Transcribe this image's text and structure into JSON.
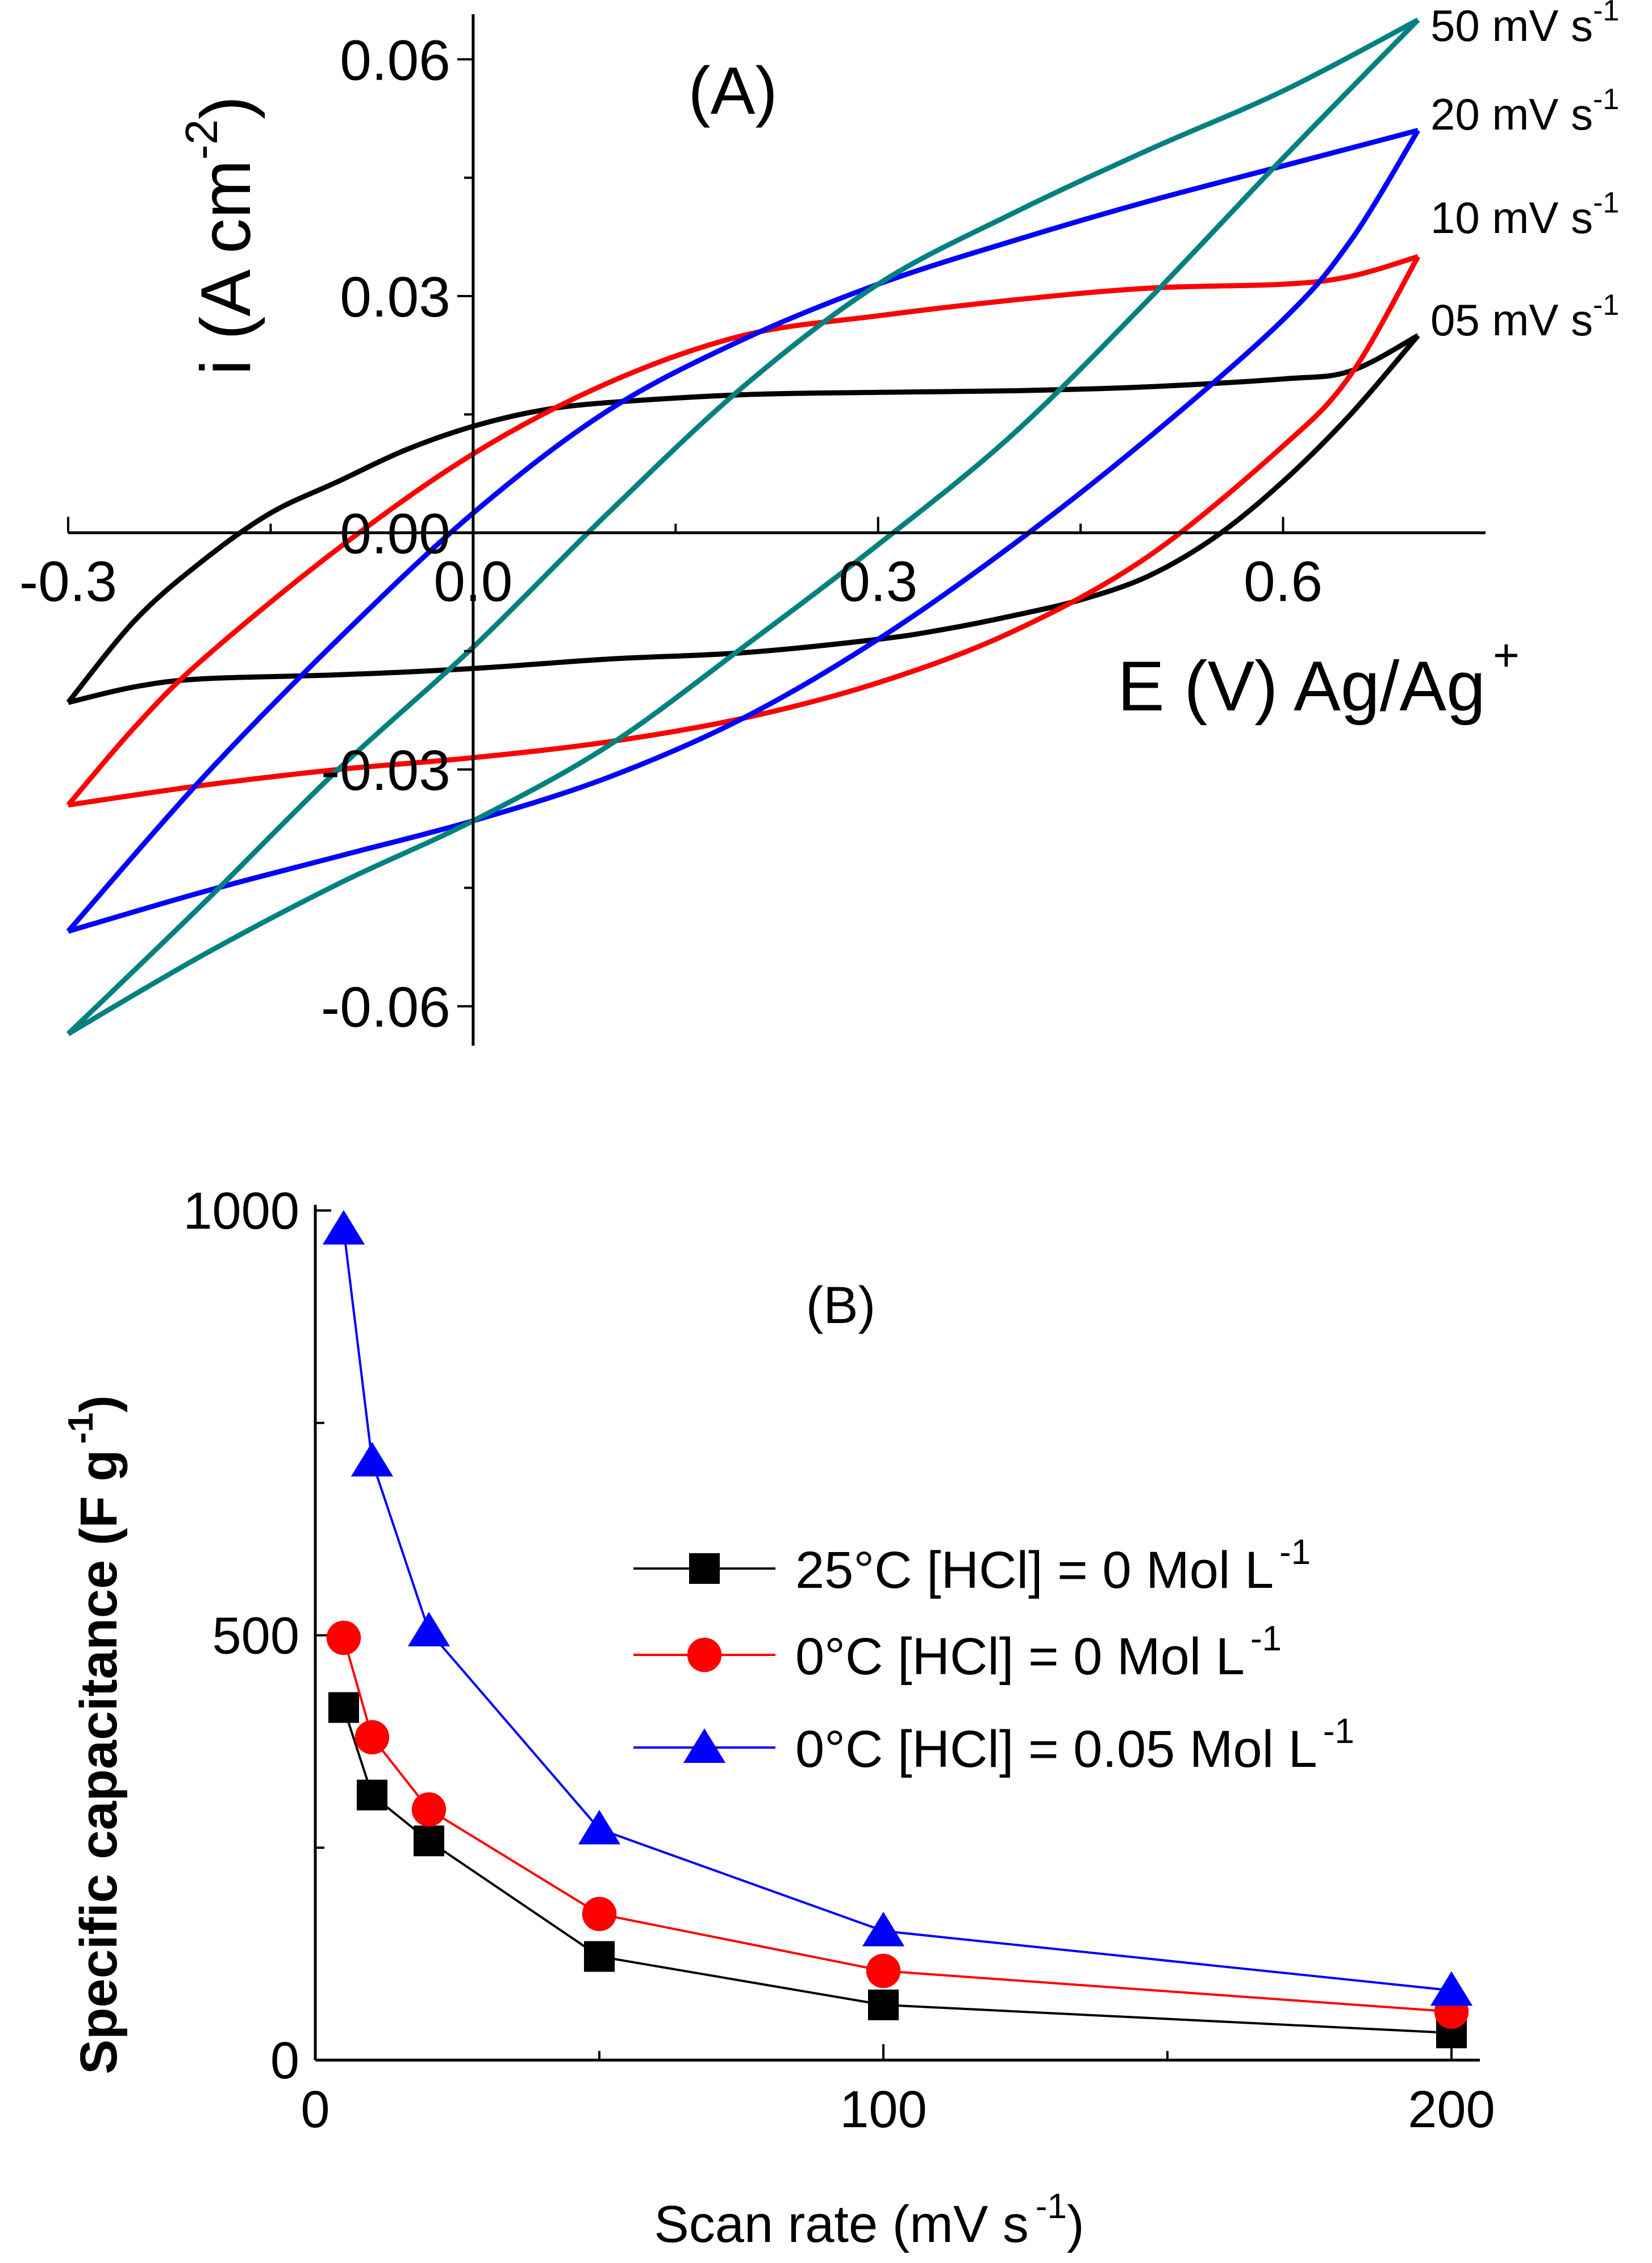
{
  "chart_data": [
    {
      "type": "line",
      "panel_label": "(A)",
      "title": "",
      "xlabel_main": "E (V) Ag/Ag",
      "xlabel_sup": "+",
      "ylabel_main": "i (A cm",
      "ylabel_sup": "-2",
      "ylabel_close": ")",
      "xlim": [
        -0.3,
        0.75
      ],
      "ylim": [
        -0.065,
        0.065
      ],
      "x_ticks": [
        {
          "v": -0.3,
          "label": "-0.3"
        },
        {
          "v": 0.0,
          "label": "0.0"
        },
        {
          "v": 0.3,
          "label": "0.3"
        },
        {
          "v": 0.6,
          "label": "0.6"
        }
      ],
      "y_ticks": [
        {
          "v": 0.06,
          "label": "0.06"
        },
        {
          "v": 0.03,
          "label": "0.03"
        },
        {
          "v": 0.0,
          "label": "0.00"
        },
        {
          "v": -0.03,
          "label": "-0.03"
        },
        {
          "v": -0.06,
          "label": "-0.06"
        }
      ],
      "series": [
        {
          "name": "05 mV s",
          "label_main": "05 mV s",
          "label_sup": "-1",
          "color": "#000000",
          "forward": [
            [
              -0.3,
              -0.0215
            ],
            [
              -0.25,
              -0.0195
            ],
            [
              -0.2,
              -0.0185
            ],
            [
              -0.1,
              -0.018
            ],
            [
              0.0,
              -0.0172
            ],
            [
              0.1,
              -0.016
            ],
            [
              0.2,
              -0.0152
            ],
            [
              0.3,
              -0.0135
            ],
            [
              0.35,
              -0.0122
            ],
            [
              0.4,
              -0.0105
            ],
            [
              0.45,
              -0.0085
            ],
            [
              0.5,
              -0.0055
            ],
            [
              0.55,
              -0.0005
            ],
            [
              0.6,
              0.0065
            ],
            [
              0.65,
              0.015
            ],
            [
              0.7,
              0.025
            ]
          ],
          "reverse": [
            [
              0.7,
              0.025
            ],
            [
              0.65,
              0.0205
            ],
            [
              0.6,
              0.0195
            ],
            [
              0.5,
              0.0185
            ],
            [
              0.4,
              0.018
            ],
            [
              0.3,
              0.0178
            ],
            [
              0.2,
              0.0175
            ],
            [
              0.1,
              0.0165
            ],
            [
              0.05,
              0.0155
            ],
            [
              0.0,
              0.0135
            ],
            [
              -0.05,
              0.0105
            ],
            [
              -0.1,
              0.0065
            ],
            [
              -0.15,
              0.0025
            ],
            [
              -0.2,
              -0.0035
            ],
            [
              -0.25,
              -0.011
            ],
            [
              -0.3,
              -0.0215
            ]
          ]
        },
        {
          "name": "10 mV s",
          "label_main": "10 mV s",
          "label_sup": "-1",
          "color": "#ff0000",
          "forward": [
            [
              -0.3,
              -0.0345
            ],
            [
              -0.2,
              -0.032
            ],
            [
              -0.1,
              -0.03
            ],
            [
              0.0,
              -0.0285
            ],
            [
              0.1,
              -0.0265
            ],
            [
              0.2,
              -0.0235
            ],
            [
              0.3,
              -0.019
            ],
            [
              0.4,
              -0.0125
            ],
            [
              0.5,
              -0.003
            ],
            [
              0.6,
              0.011
            ],
            [
              0.65,
              0.02
            ],
            [
              0.7,
              0.035
            ]
          ],
          "reverse": [
            [
              0.7,
              0.035
            ],
            [
              0.65,
              0.0325
            ],
            [
              0.6,
              0.0315
            ],
            [
              0.5,
              0.031
            ],
            [
              0.4,
              0.0295
            ],
            [
              0.3,
              0.0275
            ],
            [
              0.2,
              0.025
            ],
            [
              0.1,
              0.019
            ],
            [
              0.0,
              0.01
            ],
            [
              -0.1,
              -0.002
            ],
            [
              -0.2,
              -0.016
            ],
            [
              -0.25,
              -0.0245
            ],
            [
              -0.3,
              -0.0345
            ]
          ]
        },
        {
          "name": "20 mV s",
          "label_main": "20 mV s",
          "label_sup": "-1",
          "color": "#0000ff",
          "forward": [
            [
              -0.3,
              -0.0505
            ],
            [
              -0.2,
              -0.0455
            ],
            [
              -0.1,
              -0.041
            ],
            [
              0.0,
              -0.0365
            ],
            [
              0.1,
              -0.031
            ],
            [
              0.2,
              -0.0235
            ],
            [
              0.3,
              -0.0135
            ],
            [
              0.4,
              -0.0015
            ],
            [
              0.5,
              0.012
            ],
            [
              0.6,
              0.027
            ],
            [
              0.65,
              0.037
            ],
            [
              0.7,
              0.051
            ]
          ],
          "reverse": [
            [
              0.7,
              0.051
            ],
            [
              0.6,
              0.0465
            ],
            [
              0.5,
              0.042
            ],
            [
              0.4,
              0.037
            ],
            [
              0.3,
              0.0315
            ],
            [
              0.2,
              0.0245
            ],
            [
              0.1,
              0.0155
            ],
            [
              0.0,
              0.0025
            ],
            [
              -0.1,
              -0.0135
            ],
            [
              -0.2,
              -0.031
            ],
            [
              -0.3,
              -0.0505
            ]
          ]
        },
        {
          "name": "50 mV s",
          "label_main": "50 mV s",
          "label_sup": "-1",
          "color": "#008080",
          "forward": [
            [
              -0.3,
              -0.0635
            ],
            [
              -0.2,
              -0.0535
            ],
            [
              -0.1,
              -0.0445
            ],
            [
              0.0,
              -0.0365
            ],
            [
              0.1,
              -0.027
            ],
            [
              0.2,
              -0.0145
            ],
            [
              0.3,
              -0.0015
            ],
            [
              0.4,
              0.0125
            ],
            [
              0.5,
              0.0295
            ],
            [
              0.6,
              0.0475
            ],
            [
              0.7,
              0.065
            ]
          ],
          "reverse": [
            [
              0.7,
              0.065
            ],
            [
              0.6,
              0.056
            ],
            [
              0.5,
              0.0485
            ],
            [
              0.4,
              0.0405
            ],
            [
              0.3,
              0.0315
            ],
            [
              0.2,
              0.0185
            ],
            [
              0.1,
              0.0025
            ],
            [
              0.0,
              -0.0145
            ],
            [
              -0.1,
              -0.03
            ],
            [
              -0.2,
              -0.047
            ],
            [
              -0.3,
              -0.0635
            ]
          ]
        }
      ]
    },
    {
      "type": "line",
      "panel_label": "(B)",
      "title": "",
      "xlabel_main": "Scan rate (mV s",
      "xlabel_sup": "-1",
      "xlabel_close": ")",
      "ylabel_main": "Specific capacitance (F g",
      "ylabel_sup": "-1",
      "ylabel_close": ")",
      "xlim": [
        0,
        205
      ],
      "ylim": [
        0,
        1000
      ],
      "x_ticks": [
        {
          "v": 0,
          "label": "0"
        },
        {
          "v": 100,
          "label": "100"
        },
        {
          "v": 200,
          "label": "200"
        }
      ],
      "x_minor": [
        50,
        150
      ],
      "y_ticks": [
        {
          "v": 0,
          "label": "0"
        },
        {
          "v": 500,
          "label": "500"
        },
        {
          "v": 1000,
          "label": "1000"
        }
      ],
      "y_minor": [
        250,
        750
      ],
      "x": [
        5,
        10,
        20,
        50,
        100,
        200
      ],
      "series": [
        {
          "name": "25°C [HCl] = 0 Mol L",
          "label_main": "25°C [HCl] = 0 Mol L",
          "label_sup": "-1",
          "color": "#000000",
          "marker": "square",
          "values": [
            415,
            312,
            258,
            122,
            65,
            32
          ]
        },
        {
          "name": "0°C [HCl] = 0 Mol L",
          "label_main": "0°C   [HCl] = 0 Mol L",
          "label_sup": "-1",
          "color": "#ff0000",
          "marker": "circle",
          "values": [
            497,
            380,
            295,
            172,
            105,
            57
          ]
        },
        {
          "name": "0°C [HCl] = 0.05 Mol L",
          "label_main": "0°C   [HCl] = 0.05 Mol L",
          "label_sup": "-1",
          "color": "#0000ff",
          "marker": "triangle",
          "values": [
            978,
            705,
            505,
            272,
            152,
            82
          ]
        }
      ]
    }
  ]
}
